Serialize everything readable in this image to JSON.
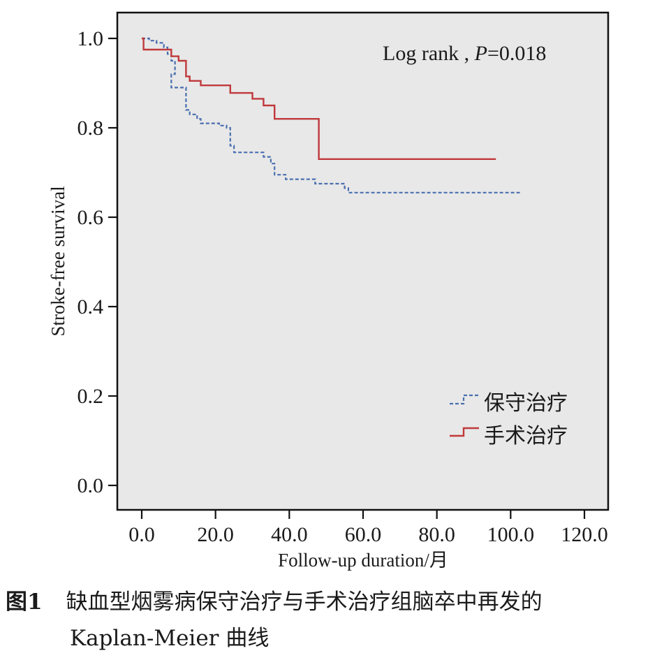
{
  "chart_data": {
    "type": "line",
    "step": true,
    "xlabel": "Follow-up duration/月",
    "ylabel": "Stroke-free survival",
    "xlim": [
      0,
      120
    ],
    "ylim": [
      0,
      1.0
    ],
    "xticks": [
      "0.0",
      "20.0",
      "40.0",
      "60.0",
      "80.0",
      "100.0",
      "120.0"
    ],
    "yticks": [
      "0.0",
      "0.2",
      "0.4",
      "0.6",
      "0.8",
      "1.0"
    ],
    "annotation": {
      "prefix": "Log rank , ",
      "p_label": "P",
      "p_value": "=0.018"
    },
    "legend_position": "lower-right",
    "background": "#e8e8e8",
    "series": [
      {
        "name": "保守治疗",
        "color": "#4a6fb0",
        "style": "dashed",
        "points": [
          [
            0,
            1.0
          ],
          [
            2,
            0.995
          ],
          [
            4,
            0.99
          ],
          [
            6,
            0.98
          ],
          [
            7,
            0.965
          ],
          [
            8,
            0.95
          ],
          [
            9,
            0.92
          ],
          [
            8,
            0.89
          ],
          [
            12,
            0.875
          ],
          [
            12,
            0.84
          ],
          [
            13,
            0.83
          ],
          [
            15,
            0.82
          ],
          [
            16,
            0.81
          ],
          [
            21,
            0.805
          ],
          [
            23,
            0.8
          ],
          [
            24,
            0.76
          ],
          [
            25,
            0.745
          ],
          [
            33,
            0.735
          ],
          [
            35,
            0.72
          ],
          [
            36,
            0.695
          ],
          [
            39,
            0.685
          ],
          [
            47,
            0.675
          ],
          [
            55,
            0.665
          ],
          [
            56,
            0.655
          ],
          [
            103,
            0.655
          ]
        ]
      },
      {
        "name": "手术治疗",
        "color": "#c0393b",
        "style": "solid",
        "points": [
          [
            0,
            1.0
          ],
          [
            0.5,
            0.975
          ],
          [
            8,
            0.96
          ],
          [
            10,
            0.95
          ],
          [
            12,
            0.915
          ],
          [
            13,
            0.905
          ],
          [
            16,
            0.895
          ],
          [
            24,
            0.878
          ],
          [
            30,
            0.865
          ],
          [
            33,
            0.85
          ],
          [
            36,
            0.82
          ],
          [
            48,
            0.73
          ],
          [
            96,
            0.73
          ]
        ]
      }
    ]
  },
  "caption": {
    "label": "图1",
    "text_line1": "缺血型烟雾病保守治疗与手术治疗组脑卒中再发的",
    "text_line2": "Kaplan-Meier 曲线"
  }
}
